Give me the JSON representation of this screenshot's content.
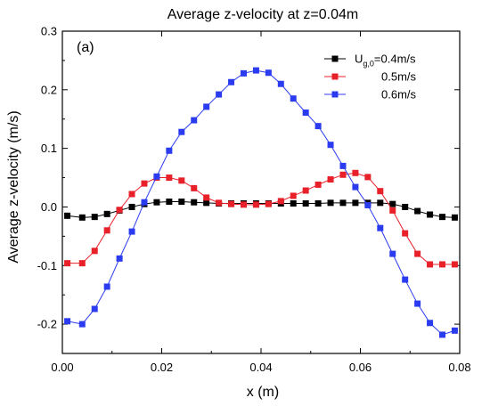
{
  "chart_data": {
    "type": "line",
    "title": "Average z-velocity at z=0.04m",
    "panel_label": "(a)",
    "xlabel": "x (m)",
    "ylabel": "Average z-velocity (m/s)",
    "xlim": [
      0,
      0.08
    ],
    "ylim": [
      -0.25,
      0.3
    ],
    "xticks": [
      "0.00",
      "0.02",
      "0.04",
      "0.06",
      "0.08"
    ],
    "yticks": [
      "-0.2",
      "-0.1",
      "0.0",
      "0.1",
      "0.2",
      "0.3"
    ],
    "grid": false,
    "legend": {
      "placement": "top-right",
      "prefix_main": "U",
      "prefix_sub": "g,0",
      "entries": [
        "=0.4m/s",
        "0.5m/s",
        "0.6m/s"
      ]
    },
    "x": [
      0.001,
      0.004,
      0.0065,
      0.009,
      0.0115,
      0.014,
      0.0165,
      0.019,
      0.0215,
      0.024,
      0.0265,
      0.029,
      0.0315,
      0.034,
      0.0365,
      0.039,
      0.0415,
      0.044,
      0.0465,
      0.049,
      0.0515,
      0.054,
      0.0565,
      0.059,
      0.0615,
      0.064,
      0.0665,
      0.069,
      0.0715,
      0.074,
      0.0765,
      0.079
    ],
    "series": [
      {
        "name": "0.4m/s",
        "color": "#000000",
        "values": [
          -0.015,
          -0.018,
          -0.017,
          -0.012,
          -0.006,
          0.0,
          0.005,
          0.008,
          0.009,
          0.009,
          0.008,
          0.007,
          0.006,
          0.006,
          0.006,
          0.006,
          0.006,
          0.006,
          0.006,
          0.006,
          0.006,
          0.007,
          0.007,
          0.007,
          0.007,
          0.007,
          0.005,
          0.0,
          -0.007,
          -0.013,
          -0.017,
          -0.018
        ]
      },
      {
        "name": "0.5m/s",
        "color": "#e8202a",
        "values": [
          -0.096,
          -0.096,
          -0.075,
          -0.04,
          -0.005,
          0.022,
          0.04,
          0.05,
          0.05,
          0.045,
          0.032,
          0.016,
          0.007,
          0.005,
          0.004,
          0.004,
          0.005,
          0.01,
          0.019,
          0.028,
          0.038,
          0.047,
          0.055,
          0.058,
          0.051,
          0.027,
          -0.006,
          -0.045,
          -0.08,
          -0.098,
          -0.098,
          -0.098
        ]
      },
      {
        "name": "0.6m/s",
        "color": "#2b3cf0",
        "values": [
          -0.195,
          -0.2,
          -0.174,
          -0.136,
          -0.088,
          -0.042,
          0.008,
          0.052,
          0.096,
          0.128,
          0.148,
          0.171,
          0.192,
          0.213,
          0.228,
          0.233,
          0.229,
          0.21,
          0.185,
          0.161,
          0.138,
          0.106,
          0.07,
          0.034,
          0.003,
          -0.036,
          -0.08,
          -0.124,
          -0.165,
          -0.198,
          -0.218,
          -0.211
        ]
      }
    ]
  }
}
